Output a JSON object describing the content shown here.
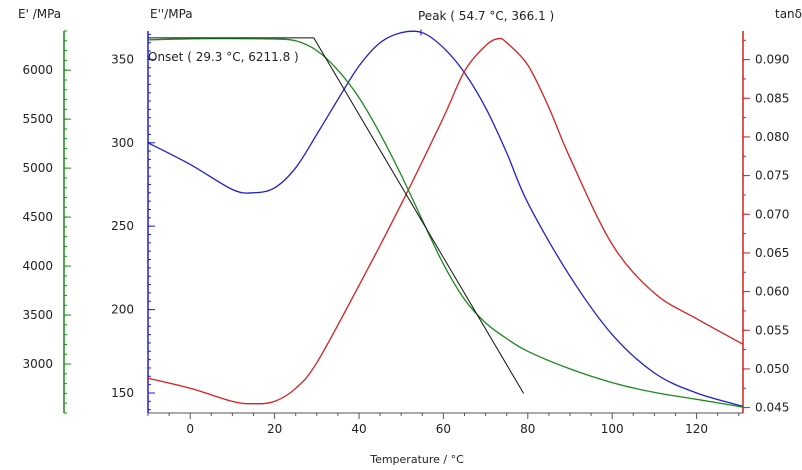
{
  "chart_data": {
    "type": "line",
    "xlabel": "Temperature / °C",
    "xlim": [
      -10,
      131
    ],
    "xticks": [
      0,
      20,
      40,
      60,
      80,
      100,
      120
    ],
    "axes": {
      "e_prime": {
        "label": "E' /MPa",
        "ylim": [
          2500,
          6400
        ],
        "ticks": [
          3000,
          3500,
          4000,
          4500,
          5000,
          5500,
          6000
        ],
        "color": "#1a8a1a"
      },
      "e_double_prime": {
        "label": "E''/MPa",
        "ylim": [
          138,
          367
        ],
        "ticks": [
          150,
          200,
          250,
          300,
          350
        ],
        "color": "#2020c8"
      },
      "tan_delta": {
        "label": "tanδ",
        "ylim": [
          0.0443,
          0.0937
        ],
        "ticks": [
          0.045,
          0.05,
          0.055,
          0.06,
          0.065,
          0.07,
          0.075,
          0.08,
          0.085,
          0.09
        ],
        "color": "#d42020"
      }
    },
    "series": [
      {
        "axis": "e_double_prime",
        "color": "#2020c8",
        "x": [
          -10,
          0,
          10,
          15,
          20,
          25,
          30,
          35,
          40,
          45,
          50,
          55,
          60,
          65,
          70,
          75,
          80,
          90,
          100,
          110,
          120,
          131
        ],
        "y": [
          300,
          287,
          272,
          270,
          273,
          285,
          305,
          326,
          346,
          360,
          366,
          366,
          357,
          342,
          321,
          294,
          264,
          220,
          185,
          162,
          150,
          142
        ]
      },
      {
        "axis": "tan_delta",
        "color": "#d42020",
        "x": [
          -10,
          0,
          10,
          15,
          20,
          25,
          30,
          40,
          50,
          60,
          65,
          70,
          73,
          75,
          80,
          85,
          90,
          100,
          110,
          120,
          131
        ],
        "y": [
          0.0488,
          0.0475,
          0.0458,
          0.0455,
          0.0458,
          0.0475,
          0.0508,
          0.0608,
          0.0713,
          0.0825,
          0.0885,
          0.0918,
          0.0927,
          0.0922,
          0.0893,
          0.0838,
          0.0773,
          0.0661,
          0.0598,
          0.0565,
          0.0532
        ]
      },
      {
        "axis": "e_prime",
        "color": "#1a8a1a",
        "x": [
          -10,
          0,
          10,
          20,
          25,
          30,
          35,
          40,
          45,
          50,
          55,
          60,
          65,
          70,
          75,
          80,
          90,
          100,
          110,
          120,
          131
        ],
        "y": [
          6310,
          6320,
          6322,
          6318,
          6300,
          6200,
          6000,
          5720,
          5350,
          4930,
          4470,
          4020,
          3660,
          3420,
          3260,
          3130,
          2950,
          2810,
          2710,
          2640,
          2560
        ]
      }
    ],
    "onset_tangent": {
      "axis": "e_prime",
      "x": [
        -10,
        29.3,
        79
      ],
      "y": [
        6330,
        6330,
        2700
      ],
      "color": "#111111"
    },
    "annotations": {
      "peak": "Peak ( 54.7  °C, 366.1 )",
      "onset": "Onset ( 29.3  °C, 6211.8 )"
    }
  }
}
